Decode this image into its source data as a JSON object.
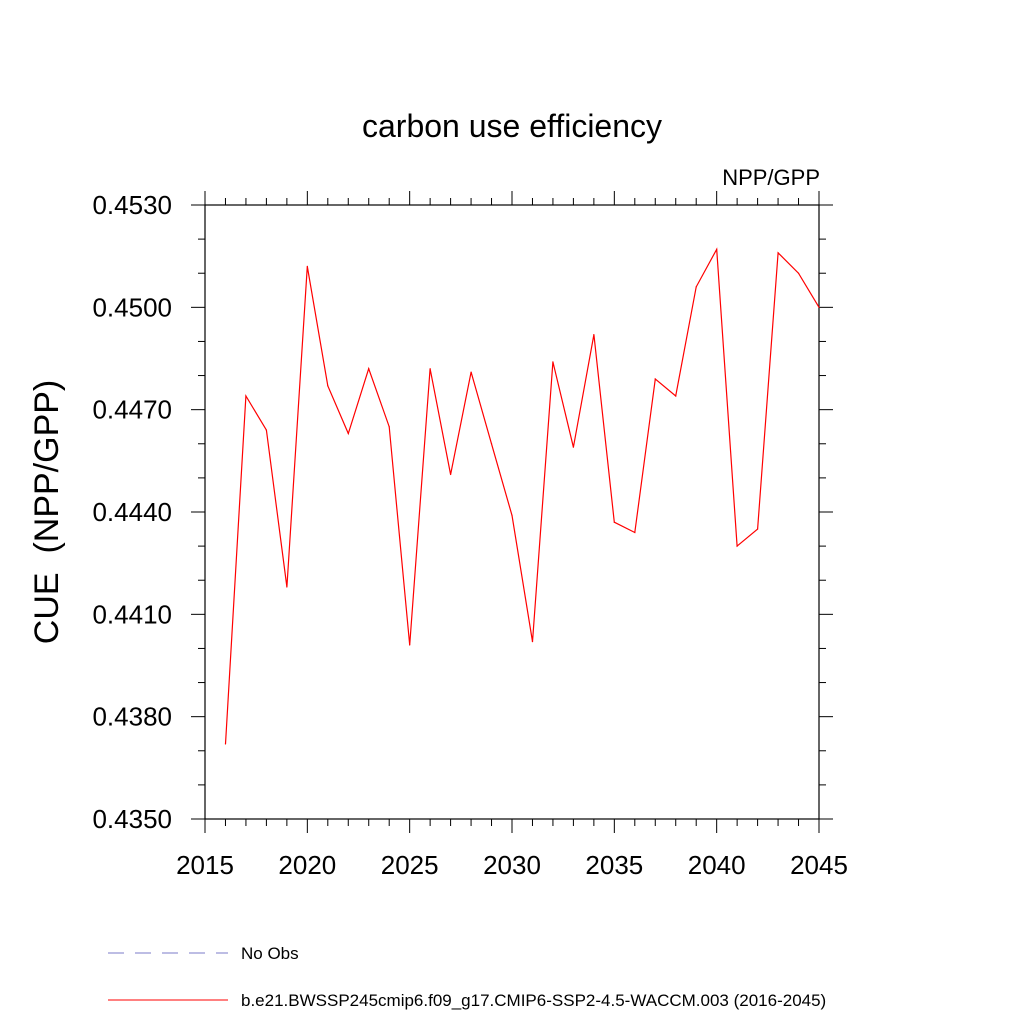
{
  "chart_data": {
    "type": "line",
    "title": "carbon use efficiency",
    "subtitle": "NPP/GPP",
    "xlabel": "",
    "ylabel": "CUE  (NPP/GPP)",
    "xlim": [
      2015,
      2045
    ],
    "ylim": [
      0.435,
      0.453
    ],
    "x_ticks": [
      "2015",
      "2020",
      "2025",
      "2030",
      "2035",
      "2040",
      "2045"
    ],
    "y_ticks": [
      "0.4350",
      "0.4380",
      "0.4410",
      "0.4440",
      "0.4470",
      "0.4500",
      "0.4530"
    ],
    "grid": false,
    "legend_placement": "bottom",
    "legend": [
      {
        "label": "No Obs",
        "color": "#7b7bc8",
        "dash": "dashed"
      },
      {
        "label": "b.e21.BWSSP245cmip6.f09_g17.CMIP6-SSP2-4.5-WACCM.003 (2016-2045)",
        "color": "#ff0000",
        "dash": "solid"
      }
    ],
    "series": [
      {
        "name": "b.e21.BWSSP245cmip6.f09_g17.CMIP6-SSP2-4.5-WACCM.003 (2016-2045)",
        "color": "#ff0000",
        "x": [
          2016,
          2017,
          2018,
          2019,
          2020,
          2021,
          2022,
          2023,
          2024,
          2025,
          2026,
          2027,
          2028,
          2029,
          2030,
          2031,
          2032,
          2033,
          2034,
          2035,
          2036,
          2037,
          2038,
          2039,
          2040,
          2041,
          2042,
          2043,
          2044,
          2045
        ],
        "values": [
          0.4372,
          0.4474,
          0.4464,
          0.4418,
          0.4512,
          0.4477,
          0.4463,
          0.4482,
          0.4465,
          0.4401,
          0.4482,
          0.4451,
          0.4481,
          0.446,
          0.4439,
          0.4402,
          0.4484,
          0.4459,
          0.4492,
          0.4437,
          0.4434,
          0.4479,
          0.4474,
          0.4506,
          0.4517,
          0.443,
          0.4435,
          0.4516,
          0.451,
          0.45
        ]
      }
    ]
  }
}
